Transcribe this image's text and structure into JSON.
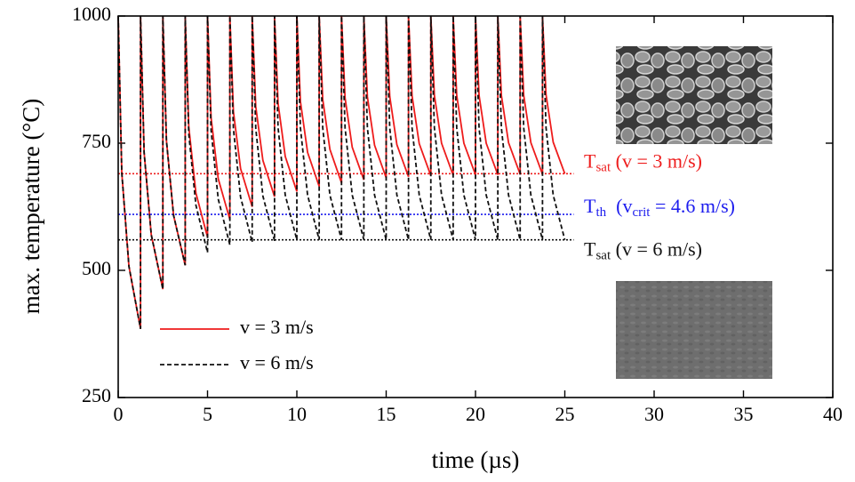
{
  "chart_data": {
    "type": "line",
    "x_label": "time (µs)",
    "y_label": "max. temperature (°C)",
    "xlim": [
      0,
      40
    ],
    "xticks": [
      0,
      5,
      10,
      15,
      20,
      25,
      30,
      35,
      40
    ],
    "ylim": [
      250,
      1000
    ],
    "yticks": [
      250,
      500,
      750,
      1000
    ],
    "legend": "lower left",
    "x": [
      0,
      0.2,
      0.6,
      1.25,
      1.25,
      1.45,
      1.85,
      2.5,
      2.5,
      2.7,
      3.1,
      3.75,
      3.75,
      3.95,
      4.35,
      5,
      5,
      5.2,
      5.6,
      6.25,
      6.25,
      6.45,
      6.85,
      7.5,
      7.5,
      7.7,
      8.1,
      8.75,
      8.75,
      8.95,
      9.35,
      10,
      10,
      10.2,
      10.6,
      11.25,
      11.25,
      11.45,
      11.85,
      12.5,
      12.5,
      12.7,
      13.1,
      13.75,
      13.75,
      13.95,
      14.35,
      15,
      15,
      15.2,
      15.6,
      16.25,
      16.25,
      16.45,
      16.85,
      17.5,
      17.5,
      17.7,
      18.1,
      18.75,
      18.75,
      18.95,
      19.35,
      20,
      20,
      20.2,
      20.6,
      21.25,
      21.25,
      21.45,
      21.85,
      22.5,
      22.5,
      22.7,
      23.1,
      23.75,
      23.75,
      23.95,
      24.35,
      25
    ],
    "series": [
      {
        "name": "v = 3 m/s",
        "color": "#ee1c1c",
        "dash": false,
        "values": [
          1000,
          692,
          508,
          385,
          1000,
          732,
          570,
          463,
          1000,
          755,
          608,
          510,
          1000,
          782,
          652,
          565,
          1000,
          800,
          680,
          600,
          1000,
          812,
          700,
          625,
          1000,
          822,
          716,
          645,
          1000,
          828,
          724,
          655,
          1000,
          832,
          732,
          665,
          1000,
          836,
          738,
          672,
          1000,
          839,
          742,
          678,
          1000,
          841,
          746,
          682,
          1000,
          842,
          747,
          684,
          1000,
          843,
          749,
          686,
          1000,
          844,
          750,
          687,
          1000,
          844,
          750,
          688,
          1000,
          844,
          750,
          688,
          1000,
          844,
          751,
          689,
          1000,
          844,
          751,
          689,
          1000,
          845,
          752,
          690
        ]
      },
      {
        "name": "v = 6 m/s",
        "color": "#111111",
        "dash": true,
        "values": [
          1000,
          692,
          508,
          385,
          1000,
          732,
          570,
          463,
          1000,
          755,
          608,
          510,
          1000,
          768,
          628,
          535,
          1000,
          775,
          640,
          550,
          1000,
          778,
          644,
          555,
          1000,
          779,
          646,
          558,
          1000,
          780,
          648,
          560,
          1000,
          780,
          648,
          560,
          1000,
          780,
          648,
          560,
          1000,
          780,
          648,
          560,
          1000,
          780,
          648,
          560,
          1000,
          780,
          648,
          560,
          1000,
          780,
          648,
          560,
          1000,
          780,
          648,
          560,
          1000,
          780,
          648,
          560,
          1000,
          780,
          648,
          560,
          1000,
          780,
          648,
          560,
          1000,
          780,
          648,
          560,
          1000,
          780,
          648,
          560
        ]
      }
    ],
    "reference_lines": [
      {
        "value": 690,
        "color": "#ee1c1c",
        "label_parts": [
          {
            "text": "T"
          },
          {
            "text": "sat",
            "sub": true
          },
          {
            "text": " (v = 3 m/s)"
          }
        ]
      },
      {
        "value": 610,
        "color": "#1c1cee",
        "label_parts": [
          {
            "text": "T"
          },
          {
            "text": "th",
            "sub": true
          },
          {
            "text": "  (v"
          },
          {
            "text": "crit",
            "sub": true
          },
          {
            "text": " = 4.6 m/s)"
          }
        ]
      },
      {
        "value": 560,
        "color": "#111111",
        "label_parts": [
          {
            "text": "T"
          },
          {
            "text": "sat",
            "sub": true
          },
          {
            "text": " (v = 6 m/s)"
          }
        ]
      }
    ]
  }
}
